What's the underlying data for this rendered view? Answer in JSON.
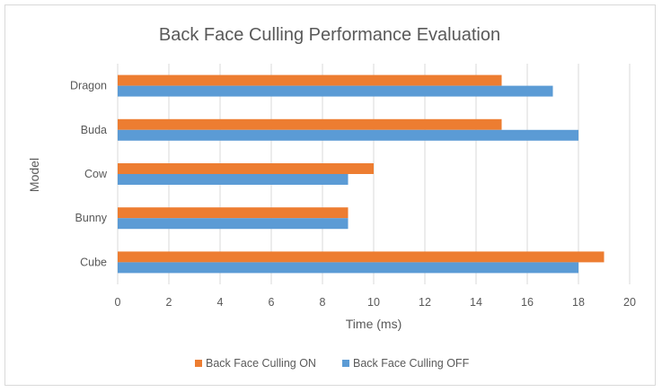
{
  "chart_data": {
    "type": "bar",
    "orientation": "horizontal",
    "title": "Back Face Culling Performance Evaluation",
    "xlabel": "Time (ms)",
    "ylabel": "Model",
    "categories": [
      "Dragon",
      "Buda",
      "Cow",
      "Bunny",
      "Cube"
    ],
    "series": [
      {
        "name": "Back Face Culling ON",
        "color": "#ed7d31",
        "values": [
          15,
          15,
          10,
          9,
          19
        ]
      },
      {
        "name": "Back Face Culling OFF",
        "color": "#5b9bd5",
        "values": [
          17,
          18,
          9,
          9,
          18
        ]
      }
    ],
    "xlim": [
      0,
      20
    ],
    "xticks": [
      "0",
      "2",
      "4",
      "6",
      "8",
      "10",
      "12",
      "14",
      "16",
      "18",
      "20"
    ],
    "grid": true,
    "legend_position": "bottom"
  }
}
